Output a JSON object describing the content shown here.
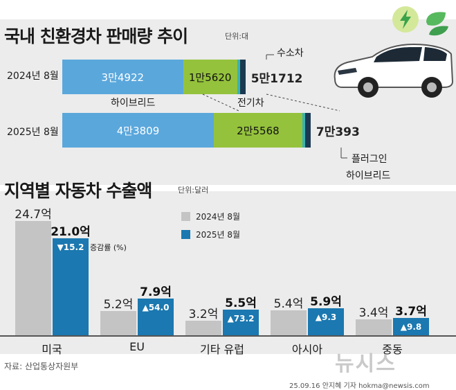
{
  "colors": {
    "hybrid": "#5aa7dc",
    "ev": "#94c23c",
    "hydrogen": "#3bb3b0",
    "phev": "#1b3a52",
    "bar2024": "#c4c4c4",
    "bar2025": "#1b78b0",
    "panel": "#ececec"
  },
  "icons": [
    "electric-bolt-icon",
    "leaf-icon",
    "car-illustration",
    "newsis-logo"
  ],
  "top": {
    "title": "국내 친환경차 판매량 추이",
    "unit": "단위:대",
    "rows": [
      {
        "label": "2024년 8월",
        "segments": [
          "3만4922",
          "1만5620",
          "",
          ""
        ],
        "total": "5만1712"
      },
      {
        "label": "2025년 8월",
        "segments": [
          "4만3809",
          "2만5568",
          "",
          ""
        ],
        "total": "7만393"
      }
    ],
    "callouts": {
      "hydrogen": "수소차",
      "hybrid": "하이브리드",
      "ev": "전기차",
      "phev_1": "플러그인",
      "phev_2": "하이브리드"
    }
  },
  "chart_data": [
    {
      "type": "bar",
      "stacked": true,
      "orientation": "horizontal",
      "title": "국내 친환경차 판매량 추이",
      "unit": "단위:대",
      "categories": [
        "2024년 8월",
        "2025년 8월"
      ],
      "series": [
        {
          "name": "하이브리드",
          "values": [
            34922,
            43809
          ]
        },
        {
          "name": "전기차",
          "values": [
            15620,
            25568
          ]
        },
        {
          "name": "수소차",
          "values": [
            null,
            null
          ]
        },
        {
          "name": "플러그인 하이브리드",
          "values": [
            null,
            null
          ]
        }
      ],
      "totals": [
        51712,
        70393
      ]
    },
    {
      "type": "bar",
      "title": "지역별 자동차 수출액",
      "unit": "단위:달러",
      "categories": [
        "미국",
        "EU",
        "기타 유럽",
        "아시아",
        "중동"
      ],
      "series": [
        {
          "name": "2024년 8월",
          "values": [
            24.7,
            5.2,
            3.2,
            5.4,
            3.4
          ],
          "labels": [
            "24.7억",
            "5.2억",
            "3.2억",
            "5.4억",
            "3.4억"
          ]
        },
        {
          "name": "2025년 8월",
          "values": [
            21.0,
            7.9,
            5.5,
            5.9,
            3.7
          ],
          "labels": [
            "21.0억",
            "7.9억",
            "5.5억",
            "5.9억",
            "3.7억"
          ]
        }
      ],
      "change_rate": {
        "label": "증감률 (%)",
        "values": [
          -15.2,
          54.0,
          73.2,
          9.3,
          9.8
        ],
        "labels": [
          "▼15.2",
          "▲54.0",
          "▲73.2",
          "▲9.3",
          "▲9.8"
        ]
      },
      "legend": [
        "2024년 8월",
        "2025년 8월"
      ],
      "ylim": [
        0,
        26
      ]
    }
  ],
  "bottom": {
    "title": "지역별 자동차 수출액",
    "unit": "단위:달러"
  },
  "footer": {
    "source": "자료: 산업통상자원부",
    "credit": "25.09.16 안지혜 기자 hokma@newsis.com",
    "logo": "뉴시스"
  }
}
